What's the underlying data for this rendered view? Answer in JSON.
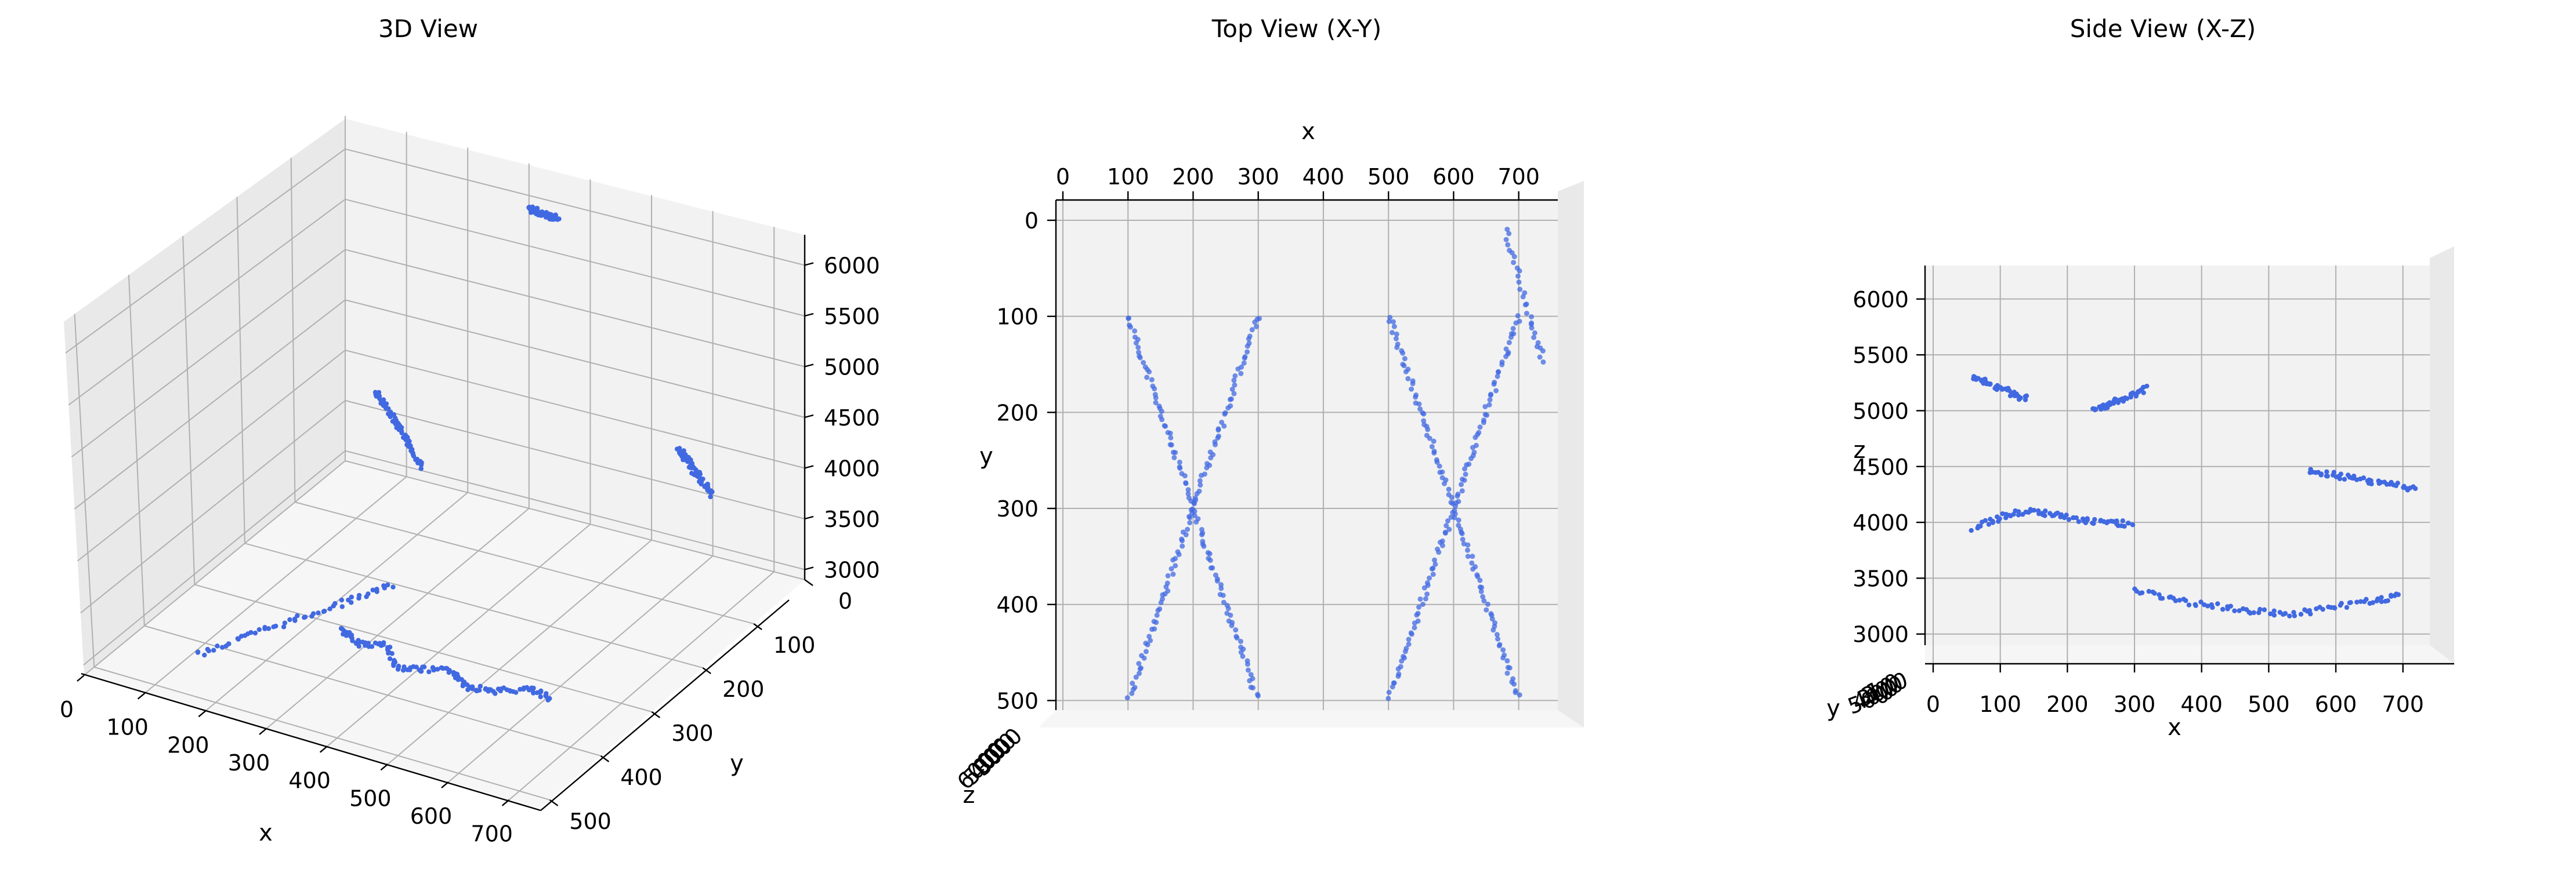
{
  "chart_data": [
    {
      "type": "scatter",
      "title": "3D View",
      "xlabel": "x",
      "ylabel": "y",
      "zlabel": "z",
      "xticks": [
        "0",
        "100",
        "200",
        "300",
        "400",
        "500",
        "600",
        "700"
      ],
      "yticks": [
        "0",
        "100",
        "200",
        "300",
        "400",
        "500"
      ],
      "zticks": [
        "3000",
        "3500",
        "4000",
        "4500",
        "5000",
        "5500",
        "6000"
      ],
      "xlim": [
        0,
        750
      ],
      "ylim": [
        0,
        520
      ],
      "zlim": [
        2900,
        6300
      ],
      "grid": true,
      "color": "#4169e1",
      "series": [
        {
          "x": [
            260,
            300,
            340,
            380,
            420,
            460,
            500,
            540,
            580,
            620
          ],
          "y": [
            320,
            340,
            330,
            360,
            350,
            340,
            360,
            350,
            330,
            340
          ],
          "z": [
            3000,
            3010,
            3020,
            3005,
            3000,
            3015,
            3010,
            3000,
            3005,
            3010
          ]
        },
        {
          "x": [
            100,
            140,
            180,
            220,
            260,
            300
          ],
          "y": [
            60,
            90,
            120,
            150,
            180,
            210
          ],
          "z": [
            4000,
            4050,
            4100,
            4150,
            4180,
            4200
          ]
        },
        {
          "x": [
            600,
            630,
            660,
            690,
            720
          ],
          "y": [
            60,
            80,
            100,
            120,
            140
          ],
          "z": [
            4300,
            4320,
            4340,
            4360,
            4380
          ]
        },
        {
          "x": [
            150,
            200,
            250,
            300,
            350
          ],
          "y": [
            480,
            440,
            400,
            360,
            320
          ],
          "z": [
            3200,
            3300,
            3400,
            3500,
            3600
          ]
        },
        {
          "x": [
            320,
            340,
            360,
            380,
            400
          ],
          "y": [
            20,
            30,
            40,
            50,
            60
          ],
          "z": [
            6000,
            6050,
            6100,
            6150,
            6200
          ]
        }
      ]
    },
    {
      "type": "scatter",
      "title": "Top View (X-Y)",
      "xlabel": "x",
      "ylabel": "y",
      "zlabel": "z",
      "xticks": [
        "0",
        "100",
        "200",
        "300",
        "400",
        "500",
        "600",
        "700"
      ],
      "yticks": [
        "0",
        "100",
        "200",
        "300",
        "400",
        "500"
      ],
      "zticks": [
        "6000",
        "5000",
        "4000",
        "3000"
      ],
      "xlim": [
        0,
        760
      ],
      "ylim": [
        0,
        510
      ],
      "grid": true,
      "color": "#4169e1",
      "series": [
        {
          "x": [
            100,
            120,
            140,
            160,
            180,
            200,
            220,
            240,
            260,
            280,
            300
          ],
          "y": [
            100,
            140,
            180,
            220,
            260,
            300,
            340,
            380,
            420,
            460,
            500
          ],
          "z": [
            4000,
            4000,
            4000,
            4000,
            4000,
            4000,
            4000,
            4000,
            4000,
            4000,
            4000
          ]
        },
        {
          "x": [
            300,
            280,
            260,
            240,
            220,
            200,
            180,
            160,
            140,
            120,
            100
          ],
          "y": [
            100,
            140,
            180,
            220,
            260,
            300,
            340,
            380,
            420,
            460,
            500
          ],
          "z": [
            4000,
            4000,
            4000,
            4000,
            4000,
            4000,
            4000,
            4000,
            4000,
            4000,
            4000
          ]
        },
        {
          "x": [
            500,
            520,
            540,
            560,
            580,
            600,
            620,
            640,
            660,
            680,
            700
          ],
          "y": [
            100,
            140,
            180,
            220,
            260,
            300,
            340,
            380,
            420,
            460,
            500
          ],
          "z": [
            3000,
            3000,
            3000,
            3000,
            3000,
            3000,
            3000,
            3000,
            3000,
            3000,
            3000
          ]
        },
        {
          "x": [
            700,
            680,
            660,
            640,
            620,
            600,
            580,
            560,
            540,
            520,
            500
          ],
          "y": [
            100,
            140,
            180,
            220,
            260,
            300,
            340,
            380,
            420,
            460,
            500
          ],
          "z": [
            3000,
            3000,
            3000,
            3000,
            3000,
            3000,
            3000,
            3000,
            3000,
            3000,
            3000
          ]
        },
        {
          "x": [
            680,
            700,
            720,
            740
          ],
          "y": [
            10,
            60,
            110,
            150
          ],
          "z": [
            4300,
            4300,
            4300,
            4300
          ]
        }
      ]
    },
    {
      "type": "scatter",
      "title": "Side View (X-Z)",
      "xlabel": "x",
      "ylabel": "y",
      "zlabel": "z",
      "xticks": [
        "0",
        "100",
        "200",
        "300",
        "400",
        "500",
        "600",
        "700"
      ],
      "zticks": [
        "3000",
        "3500",
        "4000",
        "4500",
        "5000",
        "5500",
        "6000"
      ],
      "yticks": [
        "500",
        "400",
        "300",
        "200",
        "100",
        "0"
      ],
      "xlim": [
        0,
        740
      ],
      "zlim": [
        2900,
        6300
      ],
      "grid": true,
      "color": "#4169e1",
      "series": [
        {
          "x": [
            60,
            100,
            140,
            180,
            220,
            260,
            300
          ],
          "z": [
            3950,
            4050,
            4100,
            4080,
            4020,
            4000,
            3980
          ]
        },
        {
          "x": [
            300,
            360,
            420,
            480,
            540,
            600,
            660,
            700
          ],
          "z": [
            3400,
            3300,
            3250,
            3200,
            3180,
            3250,
            3300,
            3350
          ]
        },
        {
          "x": [
            560,
            600,
            640,
            680,
            720
          ],
          "z": [
            4450,
            4420,
            4380,
            4340,
            4300
          ]
        },
        {
          "x": [
            60,
            80,
            100,
            120,
            140
          ],
          "z": [
            5300,
            5250,
            5200,
            5150,
            5100
          ]
        },
        {
          "x": [
            240,
            260,
            280,
            300,
            320
          ],
          "z": [
            5000,
            5050,
            5100,
            5150,
            5200
          ]
        }
      ]
    }
  ]
}
